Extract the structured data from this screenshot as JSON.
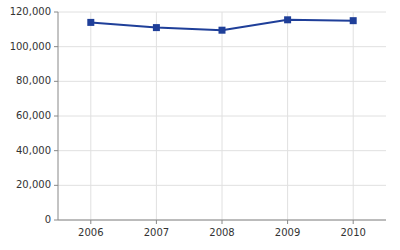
{
  "chart_data": {
    "type": "line",
    "x": [
      2006,
      2007,
      2008,
      2009,
      2010
    ],
    "values": [
      114000,
      111000,
      109500,
      115500,
      115000
    ],
    "color": "#1F3F99",
    "marker": "square",
    "xlim": [
      2005.5,
      2010.5
    ],
    "ylim": [
      0,
      120000
    ],
    "xticks": [
      2006,
      2007,
      2008,
      2009,
      2010
    ],
    "yticks": [
      0,
      {
        "value": 20000,
        "label": "20,000"
      },
      {
        "value": 40000,
        "label": "40,000"
      },
      {
        "value": 60000,
        "label": "60,000"
      },
      {
        "value": 80000,
        "label": "80,000"
      },
      {
        "value": 100000,
        "label": "100,000"
      },
      {
        "value": 120000,
        "label": "120,000"
      }
    ],
    "grid": true
  }
}
